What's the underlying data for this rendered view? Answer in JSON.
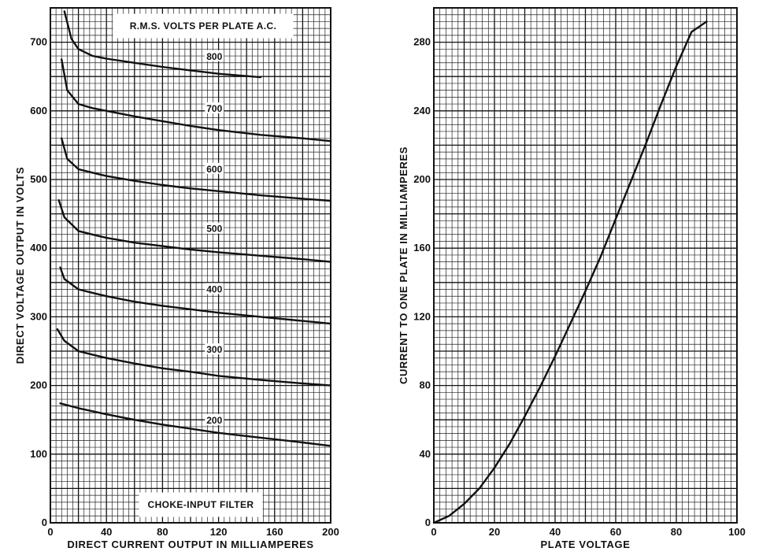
{
  "chart_data": [
    {
      "type": "line",
      "title": "",
      "xlabel": "DIRECT CURRENT OUTPUT IN MILLIAMPERES",
      "ylabel": "DIRECT VOLTAGE OUTPUT IN VOLTS",
      "xlim": [
        0,
        200
      ],
      "ylim": [
        0,
        750
      ],
      "x_ticks": [
        "0",
        "40",
        "80",
        "120",
        "160",
        "200"
      ],
      "y_ticks": [
        "0",
        "100",
        "200",
        "300",
        "400",
        "500",
        "600",
        "700"
      ],
      "grid": true,
      "annotations": [
        "R.M.S. VOLTS PER PLATE A.C.",
        "CHOKE-INPUT FILTER"
      ],
      "series": [
        {
          "name": "800",
          "x": [
            10,
            15,
            20,
            30,
            40,
            60,
            80,
            100,
            120,
            150
          ],
          "y": [
            745,
            705,
            690,
            680,
            676,
            670,
            664,
            659,
            654,
            649
          ]
        },
        {
          "name": "700",
          "x": [
            8,
            12,
            20,
            30,
            40,
            60,
            80,
            100,
            120,
            150,
            180,
            200
          ],
          "y": [
            675,
            630,
            610,
            604,
            600,
            592,
            585,
            578,
            572,
            565,
            560,
            556
          ]
        },
        {
          "name": "600",
          "x": [
            8,
            12,
            20,
            30,
            40,
            60,
            80,
            100,
            120,
            150,
            180,
            200
          ],
          "y": [
            560,
            530,
            515,
            510,
            505,
            498,
            492,
            487,
            483,
            477,
            472,
            469
          ]
        },
        {
          "name": "500",
          "x": [
            6,
            10,
            20,
            30,
            40,
            60,
            80,
            100,
            120,
            150,
            180,
            200
          ],
          "y": [
            470,
            445,
            425,
            420,
            415,
            408,
            403,
            398,
            394,
            389,
            384,
            380
          ]
        },
        {
          "name": "400",
          "x": [
            7,
            10,
            20,
            30,
            40,
            60,
            80,
            100,
            120,
            150,
            180,
            200
          ],
          "y": [
            372,
            355,
            340,
            335,
            330,
            322,
            316,
            311,
            306,
            300,
            294,
            290
          ]
        },
        {
          "name": "300",
          "x": [
            5,
            10,
            20,
            30,
            40,
            60,
            80,
            100,
            120,
            150,
            180,
            200
          ],
          "y": [
            282,
            265,
            250,
            245,
            240,
            232,
            225,
            220,
            214,
            208,
            203,
            200
          ]
        },
        {
          "name": "200",
          "x": [
            7,
            20,
            40,
            60,
            80,
            100,
            120,
            150,
            180,
            200
          ],
          "y": [
            174,
            167,
            158,
            150,
            143,
            137,
            131,
            124,
            117,
            112
          ]
        }
      ]
    },
    {
      "type": "line",
      "title": "",
      "xlabel": "PLATE VOLTAGE",
      "ylabel": "CURRENT TO ONE PLATE IN MILLIAMPERES",
      "xlim": [
        0,
        100
      ],
      "ylim": [
        0,
        300
      ],
      "x_ticks": [
        "0",
        "20",
        "40",
        "60",
        "80",
        "100"
      ],
      "y_ticks": [
        "0",
        "40",
        "80",
        "120",
        "160",
        "200",
        "240",
        "280"
      ],
      "grid": true,
      "series": [
        {
          "x": [
            0,
            5,
            10,
            15,
            20,
            25,
            30,
            35,
            40,
            45,
            50,
            55,
            60,
            65,
            70,
            75,
            80,
            85,
            90
          ],
          "y": [
            0,
            4,
            11,
            20,
            32,
            46,
            62,
            79,
            97,
            116,
            135,
            155,
            177,
            199,
            221,
            244,
            266,
            286,
            292
          ]
        }
      ]
    }
  ]
}
